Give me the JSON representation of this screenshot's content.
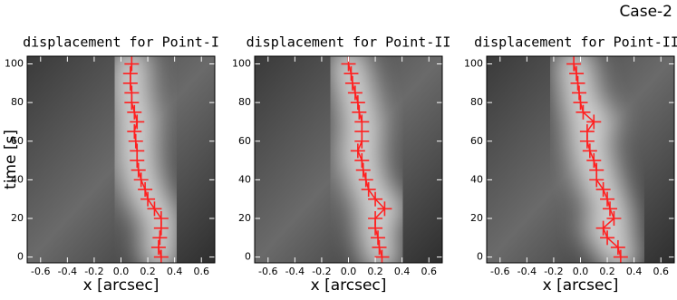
{
  "label": "Case-2",
  "chart_data": [
    {
      "type": "line",
      "title": "displacement for Point-I",
      "xlabel": "x [arcsec]",
      "ylabel": "time [s]",
      "xlim": [
        -0.7,
        0.7
      ],
      "ylim": [
        -3,
        104
      ],
      "xticks": [
        -0.6,
        -0.4,
        -0.2,
        {
          "value": 0,
          "label": "0.0"
        },
        0.2,
        0.4,
        0.6
      ],
      "yticks": [
        0,
        20,
        40,
        60,
        80,
        100
      ],
      "series": [
        {
          "color": "#ff2020",
          "x": [
            0.3,
            0.28,
            0.29,
            0.3,
            0.3,
            0.25,
            0.2,
            0.18,
            0.15,
            0.13,
            0.12,
            0.12,
            0.11,
            0.1,
            0.12,
            0.1,
            0.08,
            0.08,
            0.07,
            0.07,
            0.08
          ],
          "values": [
            0,
            5,
            10,
            15,
            20,
            25,
            30,
            35,
            40,
            45,
            50,
            55,
            60,
            65,
            70,
            75,
            80,
            85,
            90,
            95,
            100
          ]
        }
      ]
    },
    {
      "type": "line",
      "title": "displacement for Point-II",
      "xlabel": "x [arcsec]",
      "xlim": [
        -0.7,
        0.7
      ],
      "ylim": [
        -3,
        104
      ],
      "xticks": [
        -0.6,
        -0.4,
        -0.2,
        {
          "value": 0,
          "label": "0.0"
        },
        0.2,
        0.4,
        0.6
      ],
      "yticks": [
        0,
        20,
        40,
        60,
        80,
        100
      ],
      "series": [
        {
          "color": "#ff2020",
          "x": [
            0.25,
            0.23,
            0.22,
            0.2,
            0.2,
            0.27,
            0.2,
            0.15,
            0.13,
            0.11,
            0.1,
            0.07,
            0.1,
            0.1,
            0.1,
            0.08,
            0.07,
            0.05,
            0.03,
            0.02,
            0.0
          ],
          "values": [
            0,
            5,
            10,
            15,
            20,
            25,
            30,
            35,
            40,
            45,
            50,
            55,
            60,
            65,
            70,
            75,
            80,
            85,
            90,
            95,
            100
          ]
        }
      ]
    },
    {
      "type": "line",
      "title": "displacement for Point-III",
      "xlabel": "x [arcsec]",
      "xlim": [
        -0.7,
        0.7
      ],
      "ylim": [
        -3,
        104
      ],
      "xticks": [
        -0.6,
        -0.4,
        -0.2,
        {
          "value": 0,
          "label": "0.0"
        },
        0.2,
        0.4,
        0.6
      ],
      "yticks": [
        0,
        20,
        40,
        60,
        80,
        100
      ],
      "series": [
        {
          "color": "#ff2020",
          "x": [
            0.3,
            0.28,
            0.2,
            0.17,
            0.25,
            0.22,
            0.2,
            0.17,
            0.12,
            0.12,
            0.1,
            0.07,
            0.05,
            0.05,
            0.1,
            0.02,
            0.0,
            -0.01,
            -0.02,
            -0.03,
            -0.05
          ],
          "values": [
            0,
            5,
            10,
            15,
            20,
            25,
            30,
            35,
            40,
            45,
            50,
            55,
            60,
            65,
            70,
            75,
            80,
            85,
            90,
            95,
            100
          ]
        }
      ]
    }
  ]
}
